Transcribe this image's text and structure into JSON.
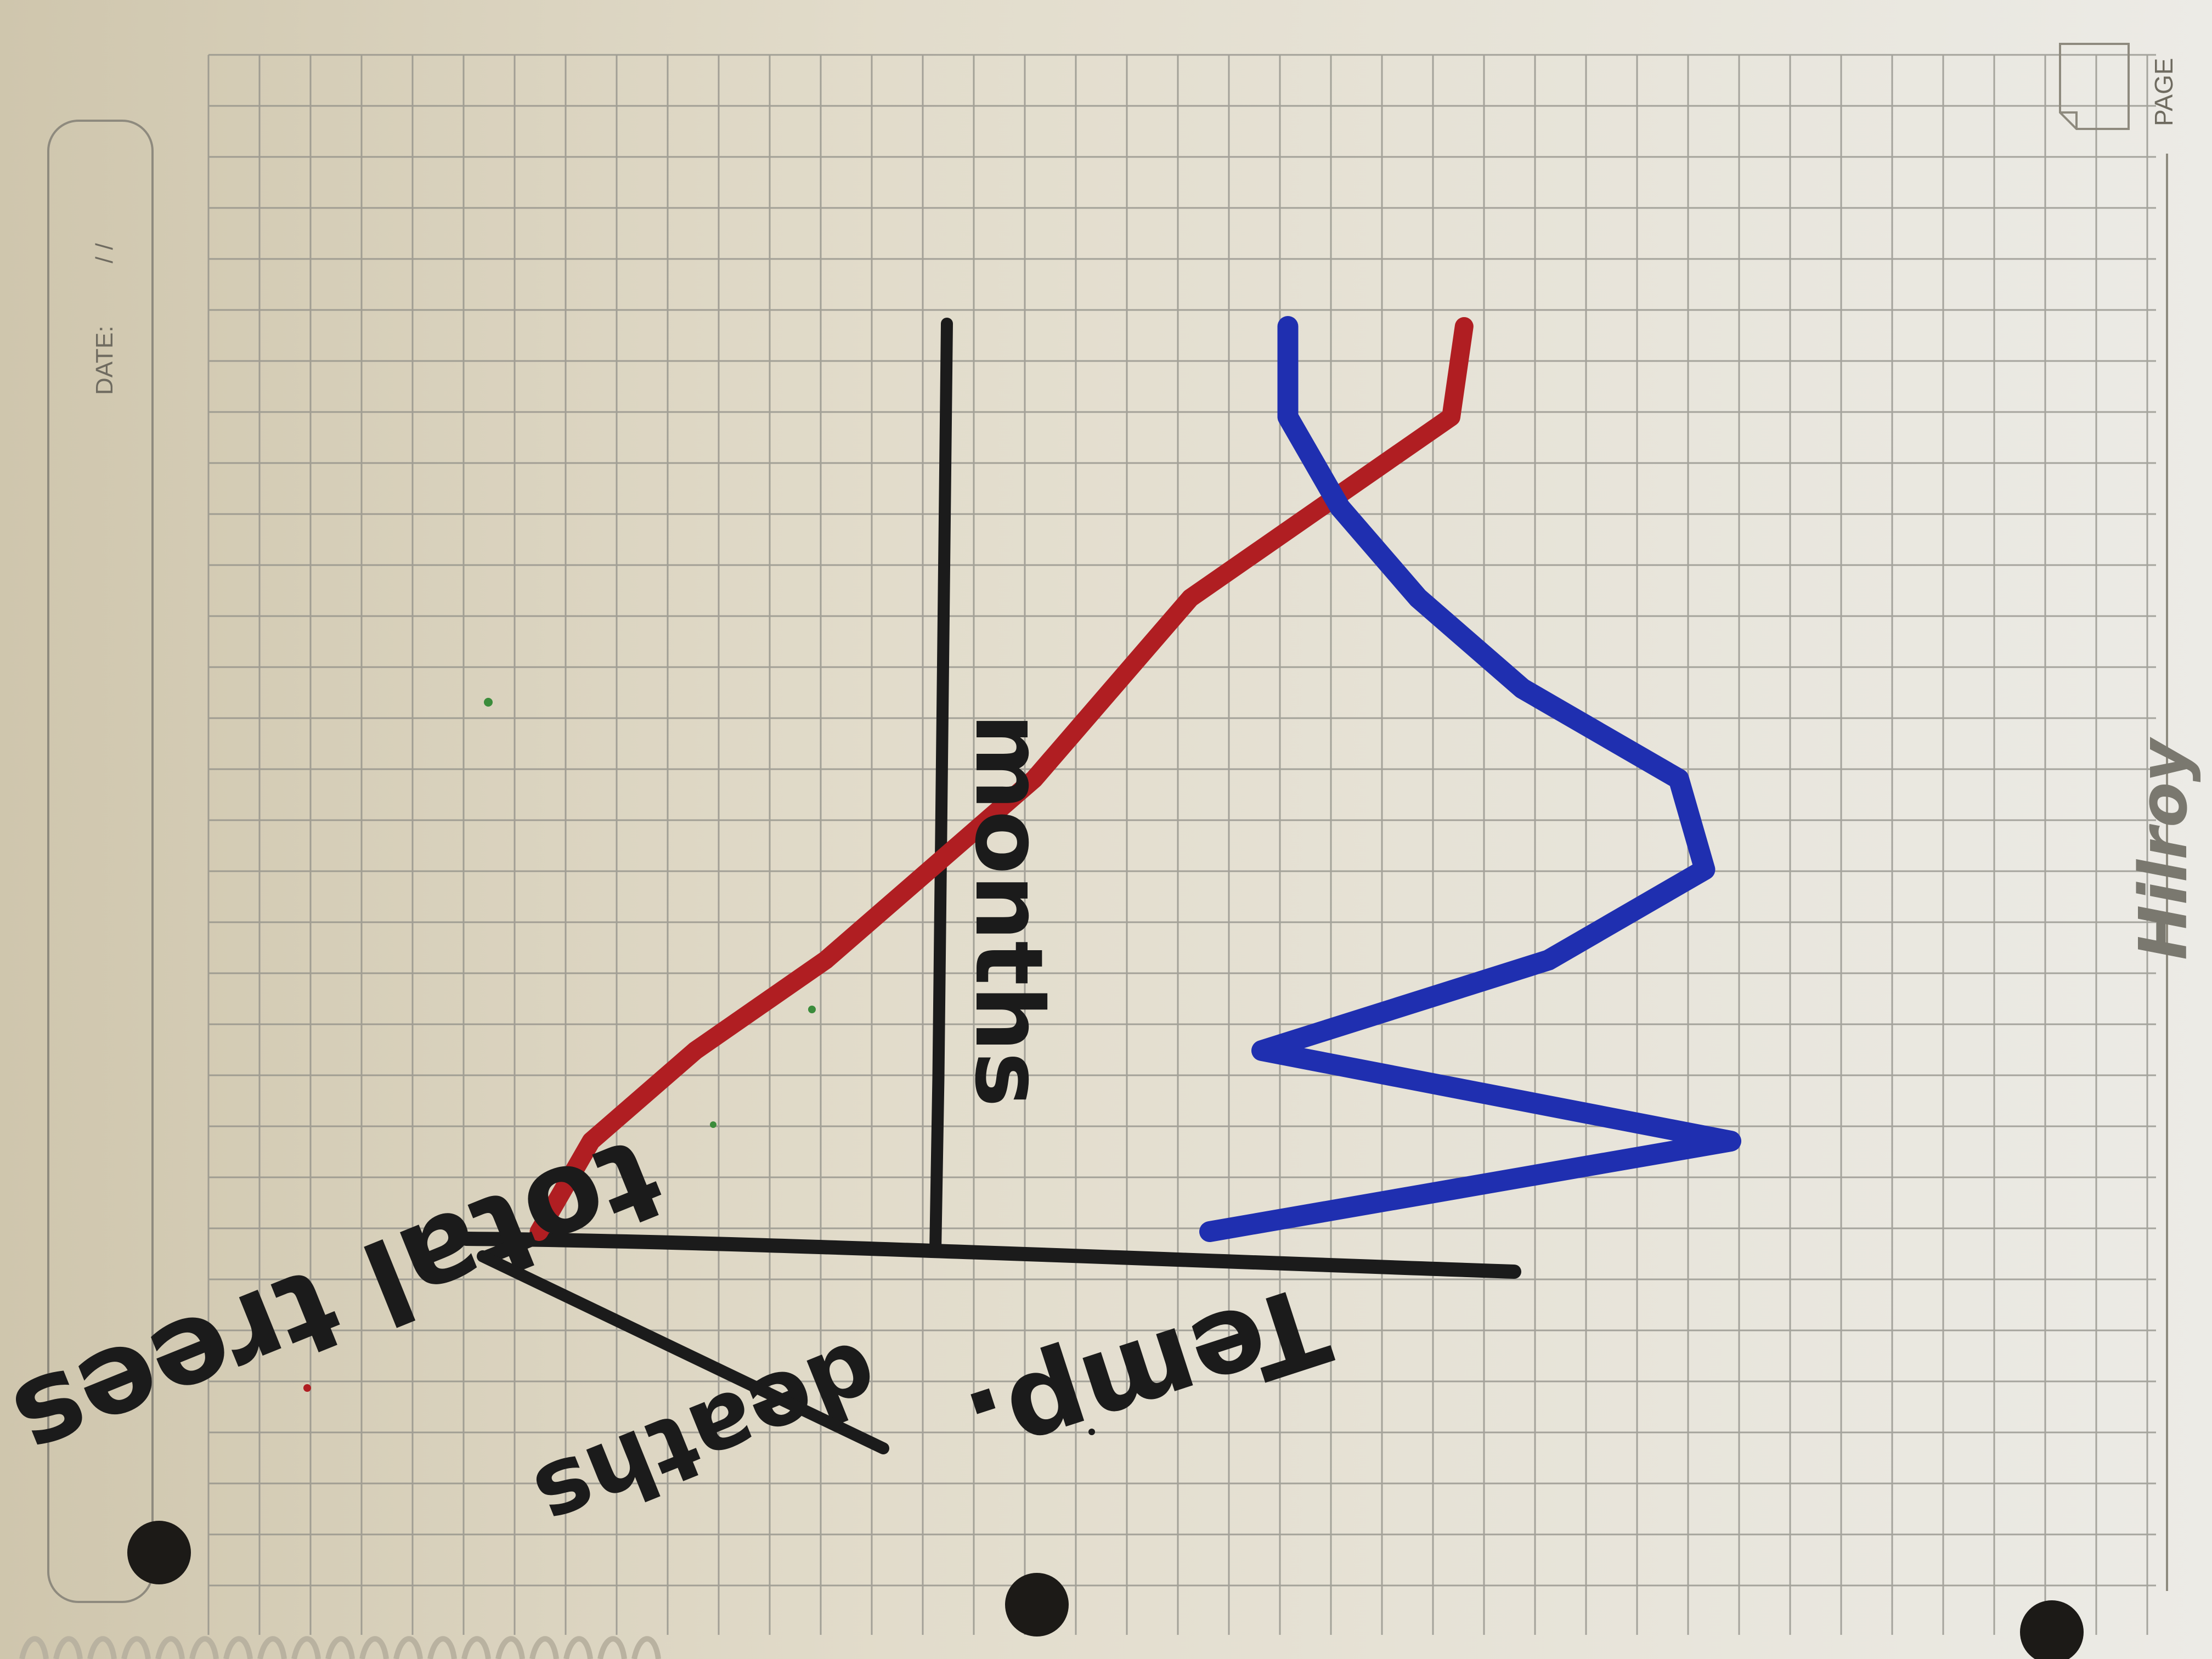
{
  "notebook": {
    "date_label": "DATE:",
    "date_slashes": "/     /",
    "page_label": "PAGE",
    "brand": "Hilroy"
  },
  "chart_data": {
    "type": "line",
    "handwritten": true,
    "orientation": "rotated-90",
    "axis_labels": {
      "left": "total trees",
      "left_crossed_out": "deaths",
      "middle": "months",
      "right": "Temp."
    },
    "series": [
      {
        "name": "",
        "color": "#b01e22",
        "x": [
          0,
          1,
          2,
          3,
          4,
          5,
          6,
          7,
          8,
          9,
          10
        ],
        "y": [
          0.1,
          0.3,
          0.7,
          1.2,
          1.6,
          2.0,
          2.3,
          2.6,
          3.1,
          3.6,
          3.65
        ]
      },
      {
        "name": "",
        "color": "#1f2fb0",
        "x": [
          0,
          1,
          2,
          3,
          4,
          5,
          6,
          7,
          8,
          9,
          10
        ],
        "y": [
          0.0,
          2.0,
          0.2,
          1.3,
          1.9,
          1.8,
          1.2,
          0.8,
          0.5,
          0.3,
          0.3
        ]
      }
    ],
    "colors": {
      "red": "#b01e22",
      "blue": "#1f2fb0",
      "ink": "#1b1b1b"
    }
  }
}
